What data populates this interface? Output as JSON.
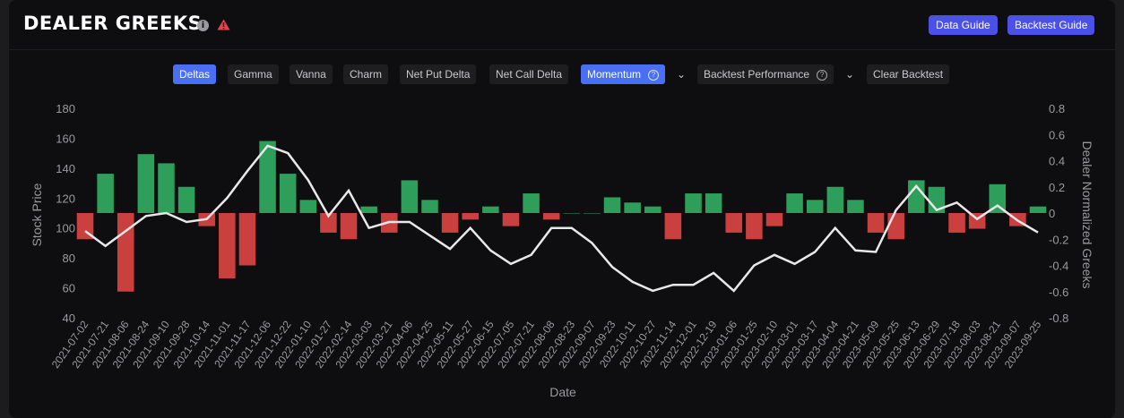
{
  "header": {
    "title": "DEALER GREEKS",
    "data_guide_label": "Data Guide",
    "backtest_guide_label": "Backtest Guide"
  },
  "icons": [
    "info-icon",
    "warning-icon",
    "help-icon",
    "chevron-down-icon"
  ],
  "colors": {
    "accent": "#4b50e6",
    "tab_active": "#4b6ff2",
    "positive": "#2e9e5b",
    "negative": "#c9403f",
    "price_line": "#e8e8e8"
  },
  "tabs": [
    {
      "label": "Deltas",
      "active": true
    },
    {
      "label": "Gamma",
      "active": false
    },
    {
      "label": "Vanna",
      "active": false
    },
    {
      "label": "Charm",
      "active": false
    },
    {
      "label": "Net Put Delta",
      "active": false
    },
    {
      "label": "Net Call Delta",
      "active": false
    },
    {
      "label": "Momentum",
      "active": true
    },
    {
      "label": "Backtest Performance",
      "active": false
    },
    {
      "label": "Clear Backtest",
      "active": false
    }
  ],
  "chart_data": {
    "type": "bar",
    "xlabel": "Date",
    "ylabel_left": "Stock Price",
    "ylabel_right": "Dealer Normalized Greeks",
    "ylim_left": [
      40,
      180
    ],
    "ylim_right": [
      -0.8,
      0.8
    ],
    "yticks_left": [
      "180",
      "160",
      "140",
      "120",
      "100",
      "80",
      "60",
      "40"
    ],
    "yticks_right": [
      "0.8",
      "0.6",
      "0.4",
      "0.2",
      "0",
      "-0.2",
      "-0.4",
      "-0.6",
      "-0.8"
    ],
    "x_ticks": [
      "2021-07-02",
      "2021-07-21",
      "2021-08-06",
      "2021-08-24",
      "2021-09-10",
      "2021-09-28",
      "2021-10-14",
      "2021-11-01",
      "2021-11-17",
      "2021-12-06",
      "2021-12-22",
      "2022-01-10",
      "2022-01-27",
      "2022-02-14",
      "2022-03-03",
      "2022-03-21",
      "2022-04-06",
      "2022-04-25",
      "2022-05-11",
      "2022-05-27",
      "2022-06-15",
      "2022-07-05",
      "2022-07-21",
      "2022-08-08",
      "2022-08-23",
      "2022-09-07",
      "2022-09-23",
      "2022-10-11",
      "2022-10-27",
      "2022-11-14",
      "2022-12-01",
      "2022-12-19",
      "2023-01-06",
      "2023-01-25",
      "2023-02-10",
      "2023-03-01",
      "2023-03-17",
      "2023-04-04",
      "2023-04-21",
      "2023-05-09",
      "2023-05-25",
      "2023-06-13",
      "2023-06-29",
      "2023-07-18",
      "2023-08-03",
      "2023-08-21",
      "2023-09-07",
      "2023-09-25"
    ],
    "series": [
      {
        "axis": "left",
        "type": "line",
        "x": [
          "2021-07-02",
          "2021-07-21",
          "2021-08-06",
          "2021-08-24",
          "2021-09-10",
          "2021-09-28",
          "2021-10-14",
          "2021-11-01",
          "2021-11-17",
          "2021-12-06",
          "2021-12-22",
          "2022-01-10",
          "2022-01-27",
          "2022-02-14",
          "2022-03-03",
          "2022-03-21",
          "2022-04-06",
          "2022-04-25",
          "2022-05-11",
          "2022-05-27",
          "2022-06-15",
          "2022-07-05",
          "2022-07-21",
          "2022-08-08",
          "2022-08-23",
          "2022-09-07",
          "2022-09-23",
          "2022-10-11",
          "2022-10-27",
          "2022-11-14",
          "2022-12-01",
          "2022-12-19",
          "2023-01-06",
          "2023-01-25",
          "2023-02-10",
          "2023-03-01",
          "2023-03-17",
          "2023-04-04",
          "2023-04-21",
          "2023-05-09",
          "2023-05-25",
          "2023-06-13",
          "2023-06-29",
          "2023-07-18",
          "2023-08-03",
          "2023-08-21",
          "2023-09-07",
          "2023-09-25"
        ],
        "values": [
          98,
          88,
          98,
          108,
          110,
          104,
          106,
          120,
          138,
          155,
          150,
          132,
          108,
          125,
          100,
          104,
          104,
          95,
          86,
          100,
          85,
          76,
          82,
          100,
          100,
          90,
          74,
          64,
          58,
          62,
          62,
          70,
          58,
          75,
          82,
          76,
          84,
          100,
          85,
          84,
          112,
          128,
          112,
          117,
          106,
          115,
          105,
          97
        ]
      },
      {
        "axis": "right",
        "type": "bar",
        "x": [
          "2021-07-02",
          "2021-07-21",
          "2021-08-06",
          "2021-08-24",
          "2021-09-10",
          "2021-09-28",
          "2021-10-14",
          "2021-11-01",
          "2021-11-17",
          "2021-12-06",
          "2021-12-22",
          "2022-01-10",
          "2022-01-27",
          "2022-02-14",
          "2022-03-03",
          "2022-03-21",
          "2022-04-06",
          "2022-04-25",
          "2022-05-11",
          "2022-05-27",
          "2022-06-15",
          "2022-07-05",
          "2022-07-21",
          "2022-08-08",
          "2022-08-23",
          "2022-09-07",
          "2022-09-23",
          "2022-10-11",
          "2022-10-27",
          "2022-11-14",
          "2022-12-01",
          "2022-12-19",
          "2023-01-06",
          "2023-01-25",
          "2023-02-10",
          "2023-03-01",
          "2023-03-17",
          "2023-04-04",
          "2023-04-21",
          "2023-05-09",
          "2023-05-25",
          "2023-06-13",
          "2023-06-29",
          "2023-07-18",
          "2023-08-03",
          "2023-08-21",
          "2023-09-07",
          "2023-09-25"
        ],
        "values": [
          -0.2,
          0.3,
          -0.6,
          0.45,
          0.38,
          0.2,
          -0.1,
          -0.5,
          -0.4,
          0.55,
          0.3,
          0.1,
          -0.15,
          -0.2,
          0.05,
          -0.15,
          0.25,
          0.1,
          -0.15,
          -0.05,
          0.05,
          -0.1,
          0.15,
          -0.05,
          0.0,
          0.0,
          0.12,
          0.08,
          0.05,
          -0.2,
          0.15,
          0.15,
          -0.15,
          -0.2,
          -0.1,
          0.15,
          0.1,
          0.2,
          0.1,
          -0.15,
          -0.2,
          0.25,
          0.2,
          -0.15,
          -0.12,
          0.22,
          -0.1,
          0.05
        ]
      }
    ],
    "grid": false,
    "legend": "none"
  }
}
